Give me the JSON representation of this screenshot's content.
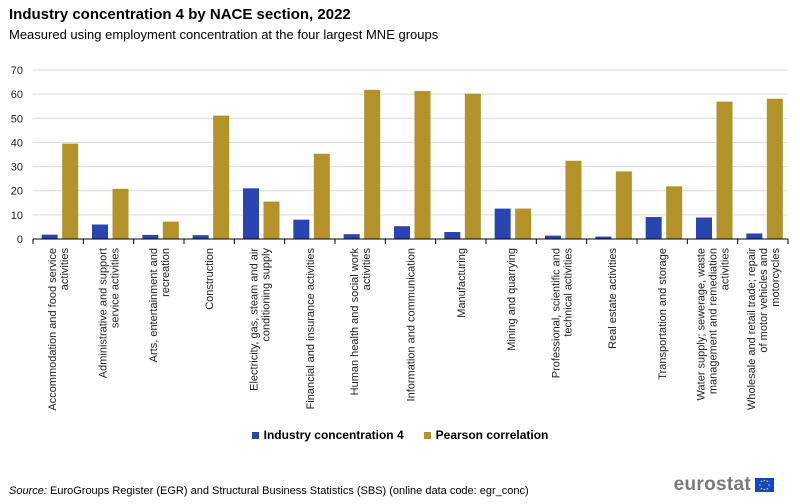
{
  "title": "Industry concentration 4 by NACE section, 2022",
  "subtitle": "Measured using employment concentration at the four largest MNE groups",
  "source": {
    "label": "Source:",
    "text": "EuroGroups Register (EGR) and Structural Business Statistics (SBS) (online data code: egr_conc)"
  },
  "logo": {
    "text": "eurostat"
  },
  "colors": {
    "series1": "#2a45b0",
    "series2": "#b29229",
    "grid": "#d9d9d9",
    "axis": "#000000"
  },
  "chart_data": {
    "type": "bar",
    "title": "Industry concentration 4 by NACE section, 2022",
    "ylim": [
      0,
      70
    ],
    "yticks": [
      0,
      10,
      20,
      30,
      40,
      50,
      60,
      70
    ],
    "grid": true,
    "legend_position": "bottom-center",
    "categories": [
      [
        "Accommodation and food service",
        "activities"
      ],
      [
        "Administrative and support",
        "service activities"
      ],
      [
        "Arts, entertainment and",
        "recreation"
      ],
      [
        "Construction"
      ],
      [
        "Electricity, gas, steam and air",
        "conditioning supply"
      ],
      [
        "Financial and insurance activities"
      ],
      [
        "Human health and social work",
        "activities"
      ],
      [
        "Information and communication"
      ],
      [
        "Manufacturing"
      ],
      [
        "Mining and quarrying"
      ],
      [
        "Professional, scientific and",
        "technical activities"
      ],
      [
        "Real estate activities"
      ],
      [
        "Transportation and storage"
      ],
      [
        "Water supply; sewerage, waste",
        "management and remediation",
        "activities"
      ],
      [
        "Wholesale and retail trade; repair",
        "of motor vehicles and",
        "motorcycles"
      ]
    ],
    "series": [
      {
        "name": "Industry concentration 4",
        "values": [
          1.8,
          6.0,
          1.7,
          1.6,
          21.0,
          8.0,
          2.0,
          5.3,
          2.9,
          12.6,
          1.4,
          1.0,
          9.1,
          8.9,
          2.3
        ]
      },
      {
        "name": "Pearson correlation",
        "values": [
          39.5,
          20.8,
          7.2,
          51.1,
          15.5,
          35.3,
          61.8,
          61.3,
          60.2,
          12.6,
          32.4,
          28.0,
          21.8,
          56.9,
          58.1
        ]
      }
    ]
  }
}
